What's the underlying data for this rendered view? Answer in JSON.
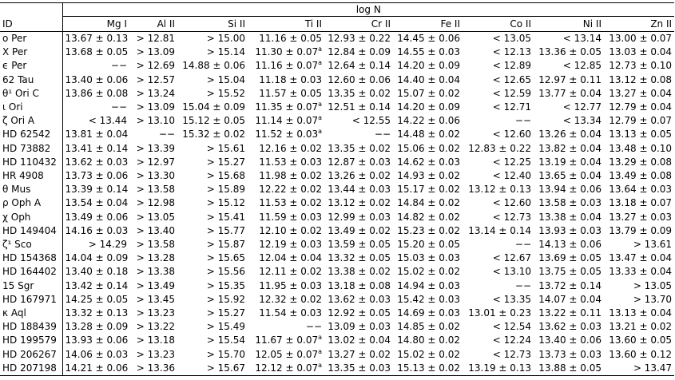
{
  "table": {
    "spanning_header": "log N",
    "columns": [
      "ID",
      "Mg I",
      "Al II",
      "Si II",
      "Ti II",
      "Cr II",
      "Fe II",
      "Co II",
      "Ni II",
      "Zn II"
    ],
    "rows": [
      {
        "id": "o Per",
        "cells": [
          "13.67 ± 0.13",
          "> 12.81",
          "> 15.00",
          "11.16 ± 0.05",
          "12.93 ± 0.22",
          "14.45 ± 0.06",
          "< 13.05",
          "< 13.14",
          "13.00 ± 0.07"
        ]
      },
      {
        "id": "X Per",
        "cells": [
          "13.68 ± 0.05",
          "> 13.09",
          "> 15.14",
          {
            "text": "11.30 ± 0.07",
            "note": "a"
          },
          "12.84 ± 0.09",
          "14.55 ± 0.03",
          "< 12.13",
          "13.36 ± 0.05",
          "13.03 ± 0.04"
        ]
      },
      {
        "id": "ϵ Per",
        "cells": [
          "−−",
          "> 12.69",
          "14.88 ± 0.06",
          {
            "text": "11.16 ± 0.07",
            "note": "a"
          },
          "12.64 ± 0.14",
          "14.20 ± 0.09",
          "< 12.89",
          "< 12.85",
          "12.73 ± 0.10"
        ]
      },
      {
        "id": "62 Tau",
        "cells": [
          "13.40 ± 0.06",
          "> 12.57",
          "> 15.04",
          "11.18 ± 0.03",
          "12.60 ± 0.06",
          "14.40 ± 0.04",
          "< 12.65",
          "12.97 ± 0.11",
          "13.12 ± 0.08"
        ]
      },
      {
        "id": "θ¹ Ori C",
        "cells": [
          "13.86 ± 0.08",
          "> 13.24",
          "> 15.52",
          "11.57 ± 0.05",
          "13.35 ± 0.02",
          "15.07 ± 0.02",
          "< 12.59",
          "13.77 ± 0.04",
          "13.27 ± 0.04"
        ]
      },
      {
        "id": "ι Ori",
        "cells": [
          "−−",
          "> 13.09",
          "15.04 ± 0.09",
          {
            "text": "11.35 ± 0.07",
            "note": "a"
          },
          "12.51 ± 0.14",
          "14.20 ± 0.09",
          "< 12.71",
          "< 12.77",
          "12.79 ± 0.04"
        ]
      },
      {
        "id": "ζ Ori A",
        "cells": [
          "< 13.44",
          "> 13.10",
          "15.12 ± 0.05",
          {
            "text": "11.14 ± 0.07",
            "note": "a"
          },
          "< 12.55",
          "14.22 ± 0.06",
          "−−",
          "< 13.34",
          "12.79 ± 0.07"
        ]
      },
      {
        "id": "HD 62542",
        "cells": [
          "13.81 ± 0.04",
          "−−",
          "15.32 ± 0.02",
          {
            "text": "11.52 ± 0.03",
            "note": "a"
          },
          "−−",
          "14.48 ± 0.02",
          "< 12.60",
          "13.26 ± 0.04",
          "13.13 ± 0.05"
        ]
      },
      {
        "id": "HD 73882",
        "cells": [
          "13.41 ± 0.14",
          "> 13.39",
          "> 15.61",
          "12.16 ± 0.02",
          "13.35 ± 0.02",
          "15.06 ± 0.02",
          "12.83 ± 0.22",
          "13.82 ± 0.04",
          "13.48 ± 0.10"
        ]
      },
      {
        "id": "HD 110432",
        "cells": [
          "13.62 ± 0.03",
          "> 12.97",
          "> 15.27",
          "11.53 ± 0.03",
          "12.87 ± 0.03",
          "14.62 ± 0.03",
          "< 12.25",
          "13.19 ± 0.04",
          "13.29 ± 0.08"
        ]
      },
      {
        "id": "HR 4908",
        "cells": [
          "13.73 ± 0.06",
          "> 13.30",
          "> 15.68",
          "11.98 ± 0.02",
          "13.26 ± 0.02",
          "14.93 ± 0.02",
          "< 12.40",
          "13.65 ± 0.04",
          "13.49 ± 0.08"
        ]
      },
      {
        "id": "θ Mus",
        "cells": [
          "13.39 ± 0.14",
          "> 13.58",
          "> 15.89",
          "12.22 ± 0.02",
          "13.44 ± 0.03",
          "15.17 ± 0.02",
          "13.12 ± 0.13",
          "13.94 ± 0.06",
          "13.64 ± 0.03"
        ]
      },
      {
        "id": "ρ Oph A",
        "cells": [
          "13.54 ± 0.04",
          "> 12.98",
          "> 15.12",
          "11.53 ± 0.02",
          "13.12 ± 0.02",
          "14.84 ± 0.02",
          "< 12.60",
          "13.58 ± 0.03",
          "13.18 ± 0.07"
        ]
      },
      {
        "id": "χ Oph",
        "cells": [
          "13.49 ± 0.06",
          "> 13.05",
          "> 15.41",
          "11.59 ± 0.03",
          "12.99 ± 0.03",
          "14.82 ± 0.02",
          "< 12.73",
          "13.38 ± 0.04",
          "13.27 ± 0.03"
        ]
      },
      {
        "id": "HD 149404",
        "cells": [
          "14.16 ± 0.03",
          "> 13.40",
          "> 15.77",
          "12.10 ± 0.02",
          "13.49 ± 0.02",
          "15.23 ± 0.02",
          "13.14 ± 0.14",
          "13.93 ± 0.03",
          "13.79 ± 0.09"
        ]
      },
      {
        "id": "ζ¹ Sco",
        "cells": [
          "> 14.29",
          "> 13.58",
          "> 15.87",
          "12.19 ± 0.03",
          "13.59 ± 0.05",
          "15.20 ± 0.05",
          "−−",
          "14.13 ± 0.06",
          "> 13.61"
        ]
      },
      {
        "id": "HD 154368",
        "cells": [
          "14.04 ± 0.09",
          "> 13.28",
          "> 15.65",
          "12.04 ± 0.04",
          "13.32 ± 0.05",
          "15.03 ± 0.03",
          "< 12.67",
          "13.69 ± 0.05",
          "13.47 ± 0.04"
        ]
      },
      {
        "id": "HD 164402",
        "cells": [
          "13.40 ± 0.18",
          "> 13.38",
          "> 15.56",
          "12.11 ± 0.02",
          "13.38 ± 0.02",
          "15.02 ± 0.02",
          "< 13.10",
          "13.75 ± 0.05",
          "13.33 ± 0.04"
        ]
      },
      {
        "id": "15 Sgr",
        "cells": [
          "13.42 ± 0.14",
          "> 13.49",
          "> 15.35",
          "11.95 ± 0.03",
          "13.18 ± 0.08",
          "14.94 ± 0.03",
          "−−",
          "13.72 ± 0.14",
          "> 13.05"
        ]
      },
      {
        "id": "HD 167971",
        "cells": [
          "14.25 ± 0.05",
          "> 13.45",
          "> 15.92",
          "12.32 ± 0.02",
          "13.62 ± 0.03",
          "15.42 ± 0.03",
          "< 13.35",
          "14.07 ± 0.04",
          "> 13.70"
        ]
      },
      {
        "id": "κ Aql",
        "cells": [
          "13.32 ± 0.13",
          "> 13.23",
          "> 15.27",
          "11.54 ± 0.03",
          "12.92 ± 0.05",
          "14.69 ± 0.03",
          "13.01 ± 0.23",
          "13.22 ± 0.11",
          "13.13 ± 0.04"
        ]
      },
      {
        "id": "HD 188439",
        "cells": [
          "13.28 ± 0.09",
          "> 13.22",
          "> 15.49",
          "−−",
          "13.09 ± 0.03",
          "14.85 ± 0.02",
          "< 12.54",
          "13.62 ± 0.03",
          "13.21 ± 0.02"
        ]
      },
      {
        "id": "HD 199579",
        "cells": [
          "13.93 ± 0.06",
          "> 13.18",
          "> 15.54",
          {
            "text": "11.67 ± 0.07",
            "note": "a"
          },
          "13.02 ± 0.04",
          "14.80 ± 0.02",
          "< 12.24",
          "13.40 ± 0.06",
          "13.60 ± 0.05"
        ]
      },
      {
        "id": "HD 206267",
        "cells": [
          "14.06 ± 0.03",
          "> 13.23",
          "> 15.70",
          {
            "text": "12.05 ± 0.07",
            "note": "a"
          },
          "13.27 ± 0.02",
          "15.02 ± 0.02",
          "< 12.73",
          "13.73 ± 0.03",
          "13.60 ± 0.12"
        ]
      },
      {
        "id": "HD 207198",
        "cells": [
          "14.21 ± 0.06",
          "> 13.36",
          "> 15.67",
          {
            "text": "12.12 ± 0.07",
            "note": "a"
          },
          "13.35 ± 0.03",
          "15.13 ± 0.02",
          "13.19 ± 0.13",
          "13.88 ± 0.05",
          "> 13.47"
        ]
      }
    ]
  }
}
